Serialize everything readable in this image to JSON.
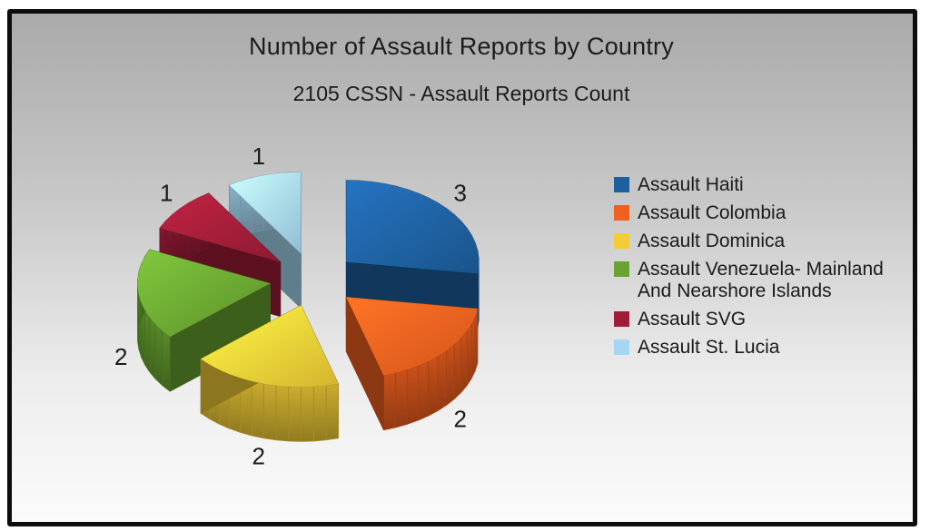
{
  "chart_data": {
    "type": "pie",
    "style": "3d-exploded",
    "title": "Number of Assault Reports by Country",
    "subtitle": "2105 CSSN - Assault Reports Count",
    "legend_position": "right",
    "data_labels": "values-outside",
    "slices": [
      {
        "label": "Assault Haiti",
        "value": 3,
        "color": "#1e5f9e"
      },
      {
        "label": "Assault Colombia",
        "value": 2,
        "color": "#f2601f"
      },
      {
        "label": "Assault Dominica",
        "value": 2,
        "color": "#f2cd37"
      },
      {
        "label": "Assault Venezuela- Mainland And Nearshore Islands",
        "value": 2,
        "color": "#69a431"
      },
      {
        "label": "Assault SVG",
        "value": 1,
        "color": "#a01d38"
      },
      {
        "label": "Assault St. Lucia",
        "value": 1,
        "color": "#a6d7f2"
      }
    ]
  }
}
